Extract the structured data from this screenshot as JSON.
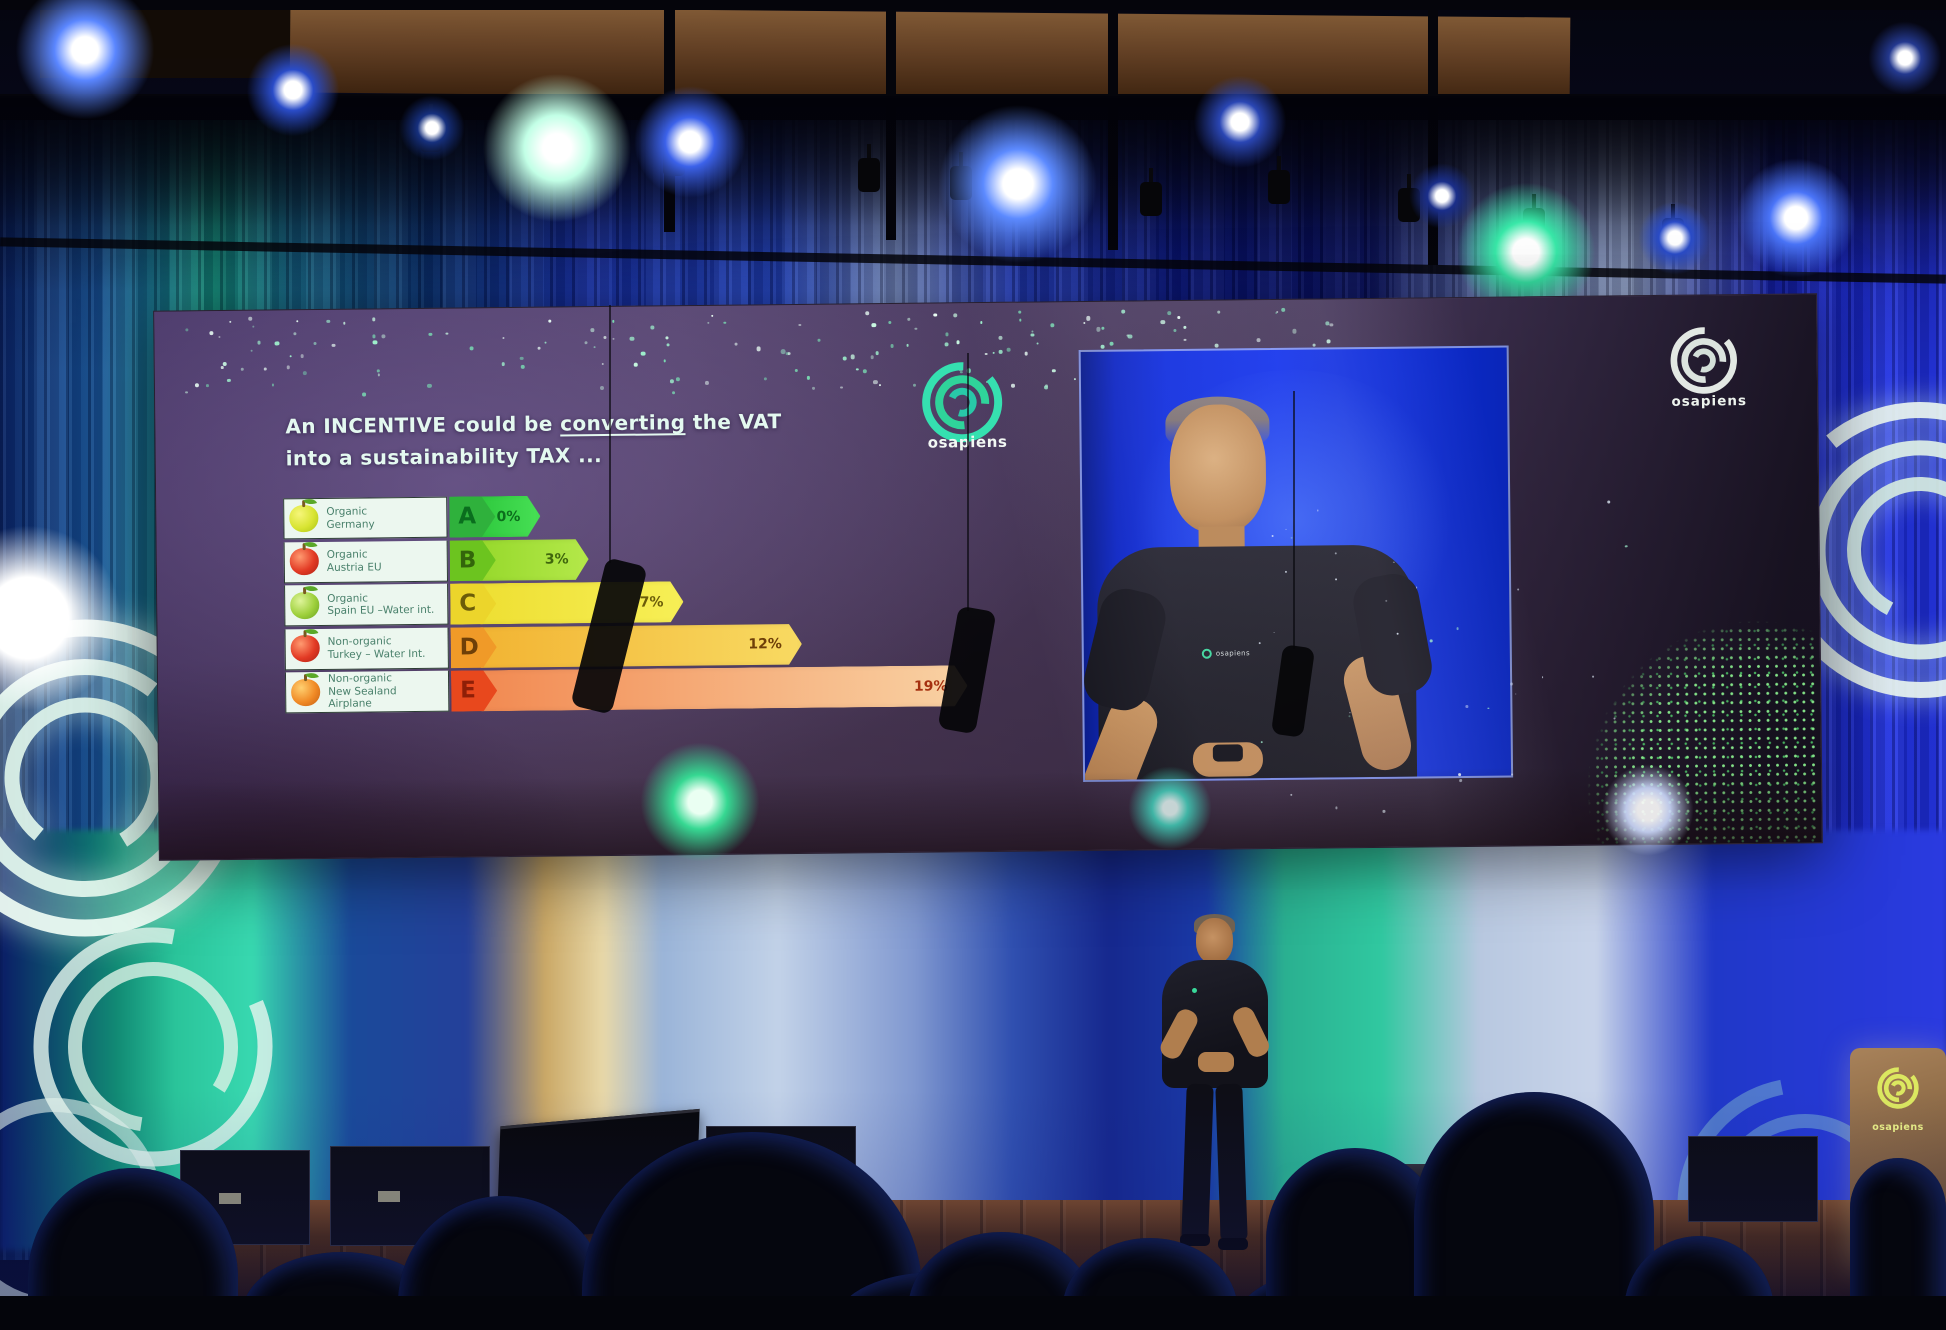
{
  "palette": {
    "brand_teal": "#2fd4a0",
    "video_feed_blue": "#0c2ce0",
    "slide_purple": "#584669",
    "stage_blue": "#1a38c0",
    "curtain_teal": "#2ac49a",
    "sparkle_mint": "#aef0d2",
    "podium_glow": "#ecf286"
  },
  "slide": {
    "title": {
      "pre": "An INCENTIVE could be ",
      "underlined": "converting",
      "post": " the VAT",
      "line2": "into a sustainability TAX ..."
    },
    "center_logo": {
      "text": "osapiens",
      "icon": "osapiens-rings-logo"
    },
    "corner_logo": {
      "text": "osapiens",
      "icon": "osapiens-rings-logo"
    },
    "chart_data": {
      "type": "bar",
      "orientation": "horizontal",
      "style": "eu-energy-label",
      "title": "",
      "xlabel": "",
      "ylabel": "",
      "xlim": [
        0,
        20
      ],
      "rows": [
        {
          "grade": "A",
          "label_lines": [
            "Organic",
            "Germany"
          ],
          "value": 0,
          "value_label": "0%",
          "apple_icon": "yellow-apple-icon",
          "chip_color": "#2fb13c",
          "bar_from": "#2fc93e",
          "bar_to": "#47e055",
          "text_color": "#0c6e1c",
          "letter_color": "#0a6e1e"
        },
        {
          "grade": "B",
          "label_lines": [
            "Organic",
            "Austria EU"
          ],
          "value": 3,
          "value_label": "3%",
          "apple_icon": "red-apple-icon",
          "chip_color": "#6cc41f",
          "bar_from": "#97d92c",
          "bar_to": "#b4e84a",
          "text_color": "#3f660c",
          "letter_color": "#33660b"
        },
        {
          "grade": "C",
          "label_lines": [
            "Organic",
            "Spain EU –Water int."
          ],
          "value": 7,
          "value_label": "7%",
          "apple_icon": "green-apple-icon",
          "chip_color": "#ecd52b",
          "bar_from": "#eedf33",
          "bar_to": "#f7ef56",
          "text_color": "#6b5c09",
          "letter_color": "#6b5c09"
        },
        {
          "grade": "D",
          "label_lines": [
            "Non-organic",
            "Turkey – Water Int."
          ],
          "value": 12,
          "value_label": "12%",
          "apple_icon": "red-apple-icon",
          "chip_color": "#f09a28",
          "bar_from": "#f2b433",
          "bar_to": "#f8da62",
          "text_color": "#6e3f08",
          "letter_color": "#6e3f08"
        },
        {
          "grade": "E",
          "label_lines": [
            "Non-organic",
            "New Sealand",
            "Airplane"
          ],
          "value": 19,
          "value_label": "19%",
          "apple_icon": "orange-apple-icon",
          "chip_color": "#e8481d",
          "bar_from": "#f28a52",
          "bar_to": "#f9d2a4",
          "text_color": "#a5300f",
          "letter_color": "#8f1f07"
        }
      ]
    }
  },
  "video_feed": {
    "shirt_logo_text": "osapiens"
  },
  "stage": {
    "podium_logo_text": "osapiens",
    "podium_logo_icon": "osapiens-rings-logo"
  }
}
